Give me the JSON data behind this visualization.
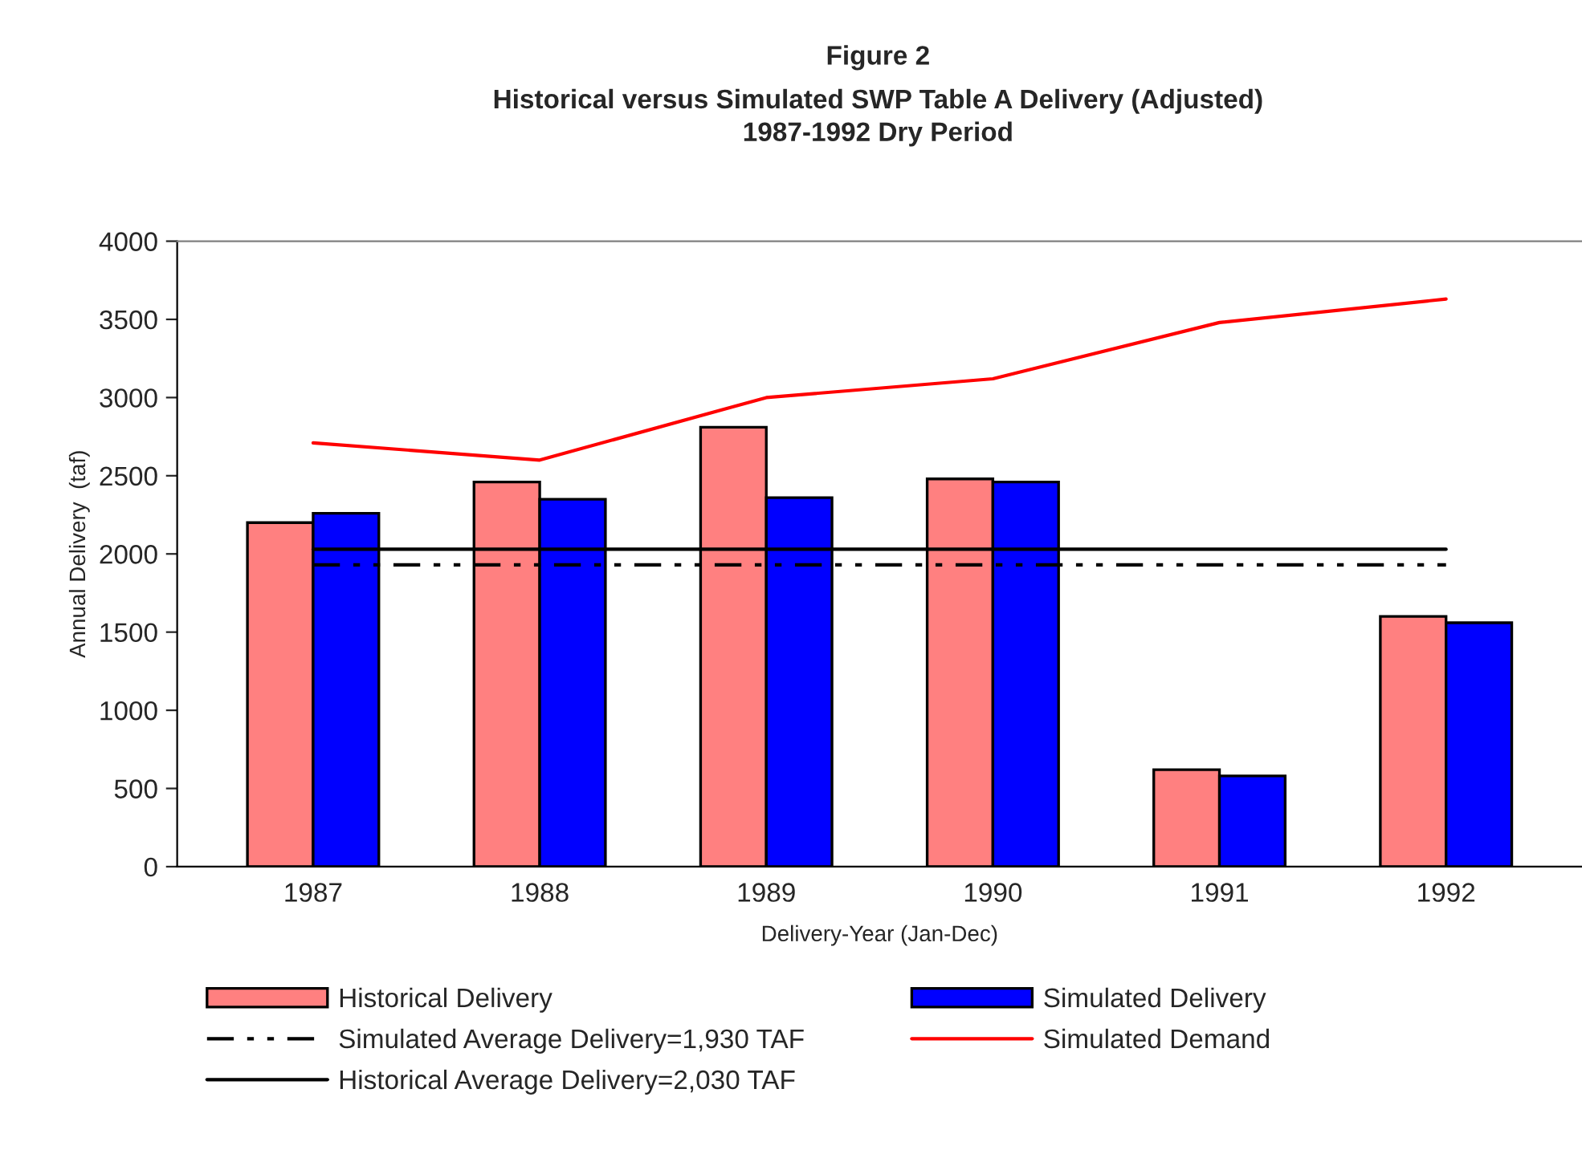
{
  "chart_data": {
    "type": "bar",
    "title": "Figure 2",
    "subtitle": "Historical versus Simulated SWP Table A Delivery (Adjusted)\n1987-1992 Dry Period",
    "xlabel": "Delivery-Year (Jan-Dec)",
    "ylabel": "Annual Delivery  (taf)",
    "categories": [
      "1987",
      "1988",
      "1989",
      "1990",
      "1991",
      "1992"
    ],
    "series": [
      {
        "name": "Historical Delivery",
        "color": "#ff8080",
        "values": [
          2200,
          2460,
          2810,
          2480,
          620,
          1600
        ]
      },
      {
        "name": "Simulated Average Delivery=1,930 TAF",
        "type": "line",
        "line_style": "dashed",
        "color": "#000000",
        "values": [
          1930,
          1930,
          1930,
          1930,
          1930,
          1930
        ]
      },
      {
        "name": "Historical Average Delivery=2,030 TAF",
        "type": "line",
        "line_style": "solid",
        "color": "#000000",
        "values": [
          2030,
          2030,
          2030,
          2030,
          2030,
          2030
        ]
      },
      {
        "name": "Simulated Delivery",
        "color": "#0000ff",
        "values": [
          2260,
          2350,
          2360,
          2460,
          580,
          1560
        ]
      },
      {
        "name": "Simulated Demand",
        "type": "line",
        "line_style": "solid",
        "color": "#ff0000",
        "values": [
          2710,
          2600,
          3000,
          3120,
          3480,
          3630
        ]
      }
    ],
    "ylim": [
      0,
      4000
    ],
    "yticks": [
      0,
      500,
      1000,
      1500,
      2000,
      2500,
      3000,
      3500,
      4000
    ],
    "grid": false,
    "legend": "bottom"
  }
}
